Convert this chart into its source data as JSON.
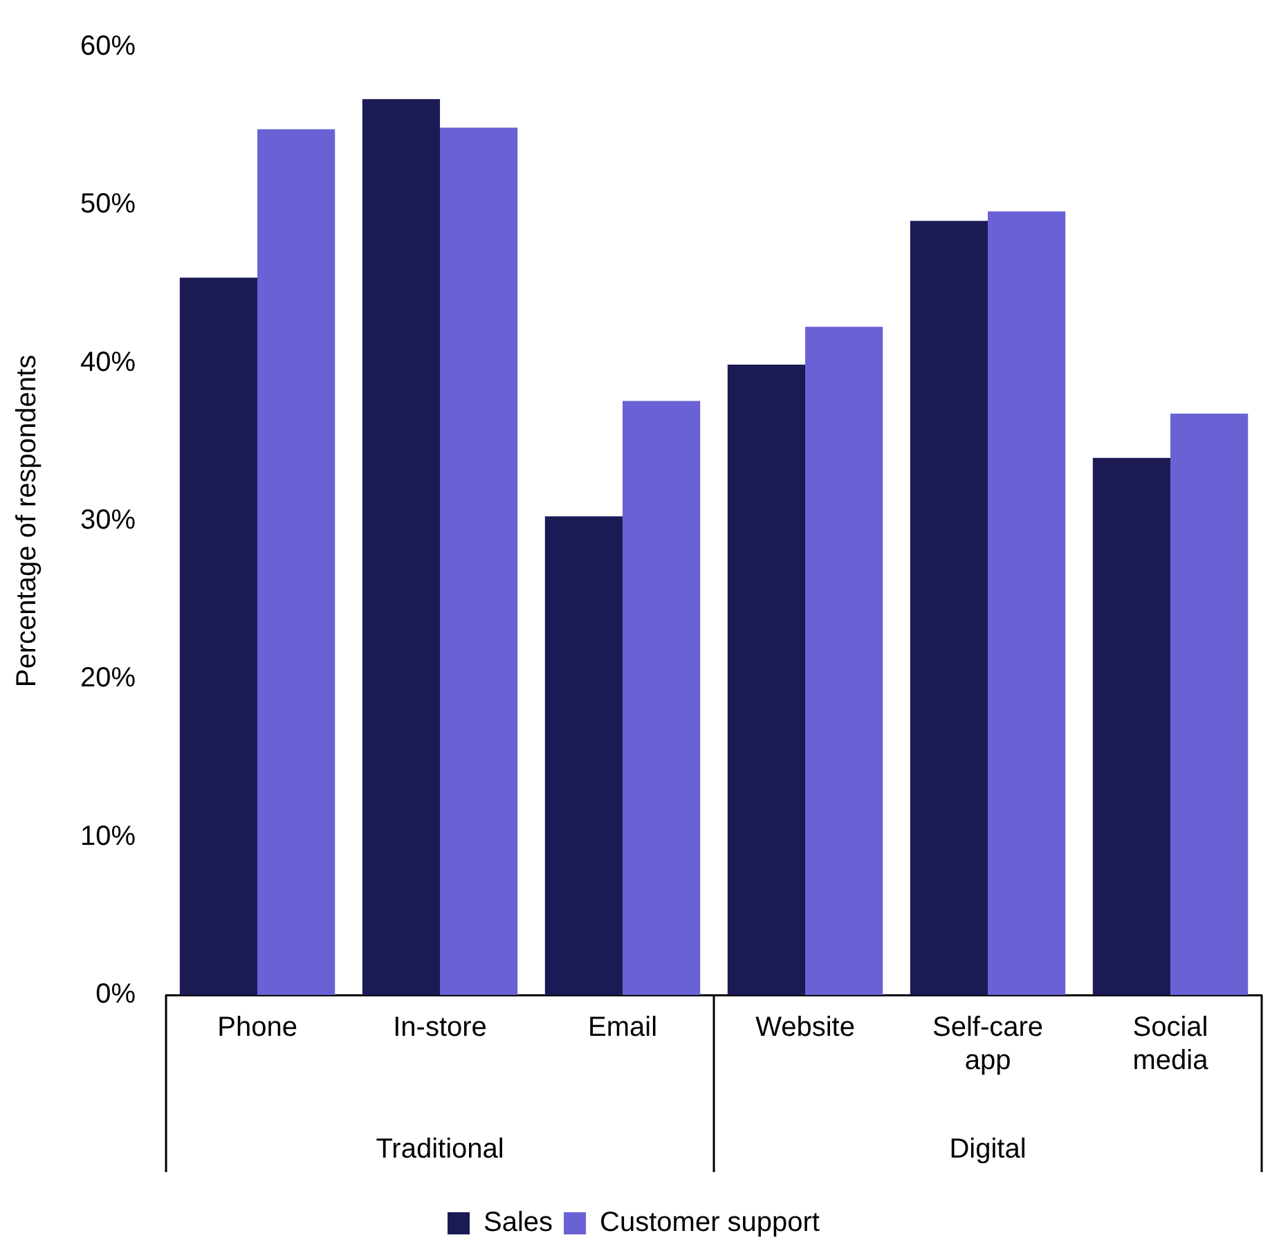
{
  "chart_data": {
    "type": "bar",
    "ylabel": "Percentage of respondents",
    "categories": [
      "Phone",
      "In-store",
      "Email",
      "Website",
      "Self-care app",
      "Social media"
    ],
    "series": [
      {
        "name": "Sales",
        "color": "#1b1a55",
        "values": [
          45.4,
          56.7,
          30.3,
          39.9,
          49.0,
          34.0
        ]
      },
      {
        "name": "Customer support",
        "color": "#6a62d4",
        "values": [
          54.8,
          54.9,
          37.6,
          42.3,
          49.6,
          36.8
        ]
      }
    ],
    "ylim": [
      0,
      60
    ],
    "yticks": [
      {
        "value": 0,
        "label": "0%"
      },
      {
        "value": 10,
        "label": "10%"
      },
      {
        "value": 20,
        "label": "20%"
      },
      {
        "value": 30,
        "label": "30%"
      },
      {
        "value": 40,
        "label": "40%"
      },
      {
        "value": 50,
        "label": "50%"
      },
      {
        "value": 60,
        "label": "60%"
      }
    ],
    "annotations": [
      "Traditional",
      "Digital"
    ],
    "grid": false,
    "legend": "bottom"
  }
}
